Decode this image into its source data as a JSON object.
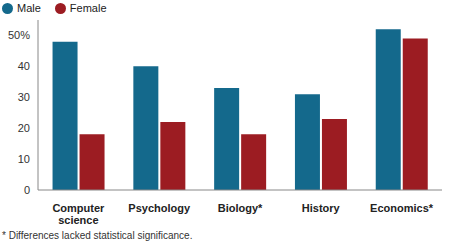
{
  "chart_data": {
    "type": "bar",
    "categories": [
      "Computer science",
      "Psychology",
      "Biology*",
      "History",
      "Economics*"
    ],
    "series": [
      {
        "name": "Male",
        "color": "#14698c",
        "values": [
          48,
          40,
          33,
          31,
          52
        ]
      },
      {
        "name": "Female",
        "color": "#9c1c22",
        "values": [
          18,
          22,
          18,
          23,
          49
        ]
      }
    ],
    "ylim": [
      0,
      55
    ],
    "yticks": [
      0,
      10,
      20,
      30,
      40,
      {
        "value": 50,
        "label": "50%"
      }
    ],
    "grid": false,
    "legend": "top-left",
    "footnote": "* Differences lacked statistical significance."
  }
}
